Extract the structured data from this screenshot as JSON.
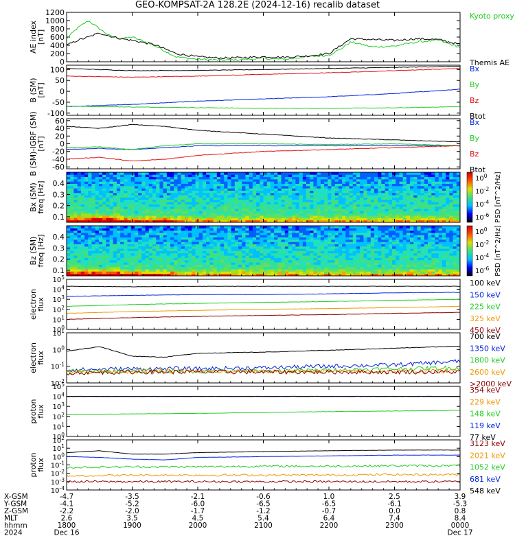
{
  "title": "GEO-KOMPSAT-2A 128.2E (2024-12-16) recalib dataset",
  "colors": {
    "black": "#000000",
    "green": "#22cc22",
    "red": "#dd1111",
    "blue": "#0022dd",
    "orange": "#ee9900",
    "darkred": "#880000"
  },
  "chart_data": [
    {
      "type": "line",
      "panel": "ae",
      "ylabel": "AE index [nT]",
      "ylim": [
        0,
        1200
      ],
      "yticks": [
        "0",
        "200",
        "400",
        "600",
        "800",
        "1000",
        "1200"
      ],
      "series": [
        {
          "name": "Kyoto proxy AE",
          "color": "#22cc22",
          "x": [
            1800,
            1810,
            1820,
            1830,
            1840,
            1850,
            1900,
            1920,
            1940,
            2000,
            2020,
            2040,
            2100,
            2120,
            2140,
            2200,
            2210,
            2220,
            2240,
            2300,
            2320,
            2340,
            2400
          ],
          "values": [
            560,
            820,
            1000,
            800,
            620,
            560,
            600,
            400,
            120,
            60,
            40,
            50,
            80,
            60,
            120,
            160,
            300,
            480,
            360,
            380,
            480,
            520,
            350
          ]
        },
        {
          "name": "Themis AE",
          "color": "#000000",
          "x": [
            1800,
            1810,
            1820,
            1830,
            1840,
            1850,
            1900,
            1920,
            1940,
            2000,
            2020,
            2040,
            2100,
            2120,
            2140,
            2200,
            2210,
            2220,
            2240,
            2300,
            2320,
            2340,
            2400
          ],
          "values": [
            400,
            520,
            600,
            700,
            620,
            560,
            520,
            420,
            200,
            120,
            90,
            100,
            120,
            110,
            140,
            200,
            380,
            560,
            540,
            520,
            560,
            540,
            420
          ]
        }
      ]
    },
    {
      "type": "line",
      "panel": "b_sm",
      "ylabel": "B (SM) [nT]",
      "ylim": [
        -110,
        120
      ],
      "yticks": [
        "-100",
        "-50",
        "0",
        "50",
        "100"
      ],
      "series": [
        {
          "name": "Bx",
          "color": "#0022dd",
          "x": [
            1800,
            1900,
            2000,
            2100,
            2200,
            2300,
            2400
          ],
          "values": [
            -70,
            -60,
            -45,
            -35,
            -25,
            -10,
            10
          ]
        },
        {
          "name": "By",
          "color": "#22cc22",
          "x": [
            1800,
            1900,
            2000,
            2100,
            2200,
            2300,
            2400
          ],
          "values": [
            -68,
            -72,
            -75,
            -78,
            -78,
            -76,
            -70
          ]
        },
        {
          "name": "Bz",
          "color": "#dd1111",
          "x": [
            1800,
            1900,
            2000,
            2100,
            2200,
            2300,
            2400
          ],
          "values": [
            70,
            65,
            70,
            78,
            85,
            95,
            105
          ]
        },
        {
          "name": "Btot",
          "color": "#000000",
          "x": [
            1800,
            1900,
            2000,
            2100,
            2200,
            2300,
            2400
          ],
          "values": [
            105,
            95,
            96,
            100,
            105,
            110,
            115
          ]
        }
      ]
    },
    {
      "type": "line",
      "panel": "b_igrf",
      "ylabel": "B (SM)-IGRF (SM) [nT]",
      "ylim": [
        -65,
        65
      ],
      "yticks": [
        "-60",
        "-40",
        "-20",
        "0",
        "20",
        "40",
        "60"
      ],
      "series": [
        {
          "name": "Bx",
          "color": "#0022dd",
          "x": [
            1800,
            1830,
            1900,
            1930,
            2000,
            2100,
            2200,
            2300,
            2400
          ],
          "values": [
            -15,
            -12,
            -15,
            -10,
            -5,
            -5,
            -5,
            -5,
            -5
          ]
        },
        {
          "name": "By",
          "color": "#22cc22",
          "x": [
            1800,
            1830,
            1900,
            1930,
            2000,
            2100,
            2200,
            2300,
            2400
          ],
          "values": [
            -10,
            -8,
            -15,
            -5,
            0,
            0,
            -2,
            0,
            -5
          ]
        },
        {
          "name": "Bz",
          "color": "#dd1111",
          "x": [
            1800,
            1830,
            1900,
            1930,
            2000,
            2100,
            2200,
            2300,
            2400
          ],
          "values": [
            -40,
            -35,
            -45,
            -40,
            -30,
            -20,
            -15,
            -10,
            -5
          ]
        },
        {
          "name": "Btot",
          "color": "#000000",
          "x": [
            1800,
            1830,
            1900,
            1930,
            2000,
            2100,
            2200,
            2300,
            2400
          ],
          "values": [
            45,
            40,
            50,
            45,
            35,
            25,
            15,
            10,
            5
          ]
        }
      ]
    },
    {
      "type": "heatmap",
      "panel": "bx_spec",
      "ylabel": "Bx (SM) freq [Hz]",
      "ylim": [
        0.05,
        0.5
      ],
      "yticks": [
        "0.1",
        "0.2",
        "0.3",
        "0.4"
      ],
      "colorbar_label": "PSD [nT^2/Hz]",
      "colorbar_ticks": [
        "10^0",
        "10^-2",
        "10^-4",
        "10^-6"
      ]
    },
    {
      "type": "heatmap",
      "panel": "bz_spec",
      "ylabel": "Bz (SM) freq [Hz]",
      "ylim": [
        0.05,
        0.5
      ],
      "yticks": [
        "0.1",
        "0.2",
        "0.3",
        "0.4"
      ],
      "colorbar_label": "PSD [nT^2/Hz]",
      "colorbar_ticks": [
        "10^0",
        "10^-2",
        "10^-4",
        "10^-6"
      ]
    },
    {
      "type": "line",
      "panel": "electron_low",
      "ylabel": "electron flux",
      "log": true,
      "ylim_exp": [
        0,
        5
      ],
      "yticks": [
        "10^0",
        "10^1",
        "10^2",
        "10^3",
        "10^4",
        "10^5"
      ],
      "series": [
        {
          "name": "100 keV",
          "color": "#000000",
          "x": [
            1800,
            1900,
            2000,
            2100,
            2200,
            2300,
            2400
          ],
          "values": [
            20000,
            18000,
            20000,
            20000,
            20000,
            20000,
            20000
          ]
        },
        {
          "name": "150 keV",
          "color": "#0022dd",
          "x": [
            1800,
            1900,
            2000,
            2100,
            2200,
            2300,
            2400
          ],
          "values": [
            2000,
            2500,
            3000,
            3000,
            3500,
            4500,
            5000
          ]
        },
        {
          "name": "225 keV",
          "color": "#22cc22",
          "x": [
            1800,
            1900,
            2000,
            2100,
            2200,
            2300,
            2400
          ],
          "values": [
            200,
            300,
            400,
            500,
            600,
            800,
            1000
          ]
        },
        {
          "name": "325 keV",
          "color": "#ee9900",
          "x": [
            1800,
            1900,
            2000,
            2100,
            2200,
            2300,
            2400
          ],
          "values": [
            40,
            60,
            80,
            100,
            120,
            150,
            200
          ]
        },
        {
          "name": "450 keV",
          "color": "#880000",
          "x": [
            1800,
            1900,
            2000,
            2100,
            2200,
            2300,
            2400
          ],
          "values": [
            10,
            15,
            20,
            25,
            30,
            40,
            50
          ]
        }
      ]
    },
    {
      "type": "line",
      "panel": "electron_high",
      "ylabel": "electron flux",
      "log": true,
      "ylim_exp": [
        -2,
        1
      ],
      "yticks": [
        "10^-2",
        "10^-1",
        "10^0",
        "10^1"
      ],
      "series": [
        {
          "name": "700 keV",
          "color": "#000000",
          "x": [
            1800,
            1830,
            1900,
            1930,
            2000,
            2100,
            2200,
            2300,
            2400
          ],
          "values": [
            0.8,
            1.5,
            0.4,
            0.35,
            0.6,
            0.7,
            0.9,
            1.2,
            1.6
          ]
        },
        {
          "name": "1350 keV",
          "color": "#0022dd",
          "x": [
            1800,
            1900,
            2000,
            2100,
            2200,
            2300,
            2400
          ],
          "values": [
            0.06,
            0.07,
            0.07,
            0.08,
            0.1,
            0.12,
            0.2
          ]
        },
        {
          "name": "1800 keV",
          "color": "#22cc22",
          "x": [
            1800,
            1900,
            2000,
            2100,
            2200,
            2300,
            2400
          ],
          "values": [
            0.05,
            0.05,
            0.05,
            0.05,
            0.06,
            0.07,
            0.08
          ]
        },
        {
          "name": "2600 keV",
          "color": "#ee9900",
          "x": [
            1800,
            1900,
            2000,
            2100,
            2200,
            2300,
            2400
          ],
          "values": [
            0.045,
            0.05,
            0.05,
            0.05,
            0.05,
            0.05,
            0.05
          ]
        },
        {
          "name": ">2000 keV",
          "color": "#880000",
          "x": [
            1800,
            1900,
            2000,
            2100,
            2200,
            2300,
            2400
          ],
          "values": [
            0.04,
            0.045,
            0.045,
            0.045,
            0.045,
            0.045,
            0.045
          ]
        }
      ]
    },
    {
      "type": "line",
      "panel": "proton_low",
      "ylabel": "proton flux",
      "log": true,
      "ylim_exp": [
        0,
        5
      ],
      "yticks": [
        "10^0",
        "10^1",
        "10^2",
        "10^3",
        "10^4",
        "10^5"
      ],
      "series": [
        {
          "name": "354 keV",
          "color": "#880000",
          "x": [
            1800,
            1900,
            2000,
            2100,
            2200,
            2300,
            2400
          ],
          "values": [
            10000,
            10000,
            10000,
            10000,
            10000,
            10000,
            10000
          ]
        },
        {
          "name": "229 keV",
          "color": "#ee9900",
          "x": [
            1800,
            1900,
            2000,
            2100,
            2200,
            2300,
            2400
          ],
          "values": [
            10000,
            10000,
            10000,
            10000,
            10000,
            10000,
            10000
          ]
        },
        {
          "name": "148 keV",
          "color": "#22cc22",
          "x": [
            1800,
            1900,
            2000,
            2100,
            2200,
            2300,
            2400
          ],
          "values": [
            150,
            180,
            200,
            250,
            300,
            350,
            400
          ]
        },
        {
          "name": "119 keV",
          "color": "#0022dd",
          "x": [
            1800,
            1900,
            2000,
            2100,
            2200,
            2300,
            2400
          ],
          "values": [
            10000,
            10000,
            10000,
            10000,
            10000,
            10000,
            10000
          ]
        },
        {
          "name": "77 keV",
          "color": "#000000",
          "x": [
            1800,
            1900,
            2000,
            2100,
            2200,
            2300,
            2400
          ],
          "values": [
            10000,
            10000,
            10000,
            10000,
            10000,
            10000,
            10000
          ]
        }
      ]
    },
    {
      "type": "line",
      "panel": "proton_high",
      "ylabel": "proton flux",
      "log": true,
      "ylim_exp": [
        -4,
        2
      ],
      "yticks": [
        "10^-4",
        "10^-3",
        "10^-2",
        "10^-1",
        "10^0",
        "10^1",
        "10^2"
      ],
      "series": [
        {
          "name": "3123 keV",
          "color": "#880000",
          "x": [
            1800,
            1900,
            2000,
            2100,
            2200,
            2300,
            2400
          ],
          "values": [
            0.001,
            0.001,
            0.001,
            0.001,
            0.001,
            0.001,
            0.001
          ]
        },
        {
          "name": "2021 keV",
          "color": "#ee9900",
          "x": [
            1800,
            1900,
            2000,
            2100,
            2200,
            2300,
            2400
          ],
          "values": [
            0.005,
            0.006,
            0.006,
            0.006,
            0.006,
            0.007,
            0.007
          ]
        },
        {
          "name": "1052 keV",
          "color": "#22cc22",
          "x": [
            1800,
            1900,
            2000,
            2100,
            2200,
            2300,
            2400
          ],
          "values": [
            0.05,
            0.06,
            0.06,
            0.07,
            0.07,
            0.08,
            0.08
          ]
        },
        {
          "name": "681 keV",
          "color": "#0022dd",
          "x": [
            1800,
            1830,
            1900,
            1930,
            2000,
            2100,
            2200,
            2300,
            2400
          ],
          "values": [
            1,
            0.8,
            0.5,
            0.4,
            0.8,
            1,
            1.2,
            1.5,
            1.5
          ]
        },
        {
          "name": "548 keV",
          "color": "#000000",
          "x": [
            1800,
            1830,
            1900,
            1930,
            2000,
            2100,
            2200,
            2300,
            2400
          ],
          "values": [
            3,
            5,
            2,
            2,
            3,
            4,
            5,
            6,
            6
          ]
        }
      ]
    }
  ],
  "ephemeris": {
    "row_labels": [
      "X-GSM",
      "Y-GSM",
      "Z-GSM",
      "MLT",
      "hhmm",
      "2024"
    ],
    "columns": [
      {
        "values": [
          "-4.7",
          "-4.1",
          "-2.2",
          "2.6",
          "1800",
          "Dec 16"
        ]
      },
      {
        "values": [
          "-3.5",
          "-5.2",
          "-2.0",
          "3.5",
          "1900",
          ""
        ]
      },
      {
        "values": [
          "-2.1",
          "-6.0",
          "-1.7",
          "4.5",
          "2000",
          ""
        ]
      },
      {
        "values": [
          "-0.6",
          "-6.5",
          "-1.2",
          "5.4",
          "2100",
          ""
        ]
      },
      {
        "values": [
          "1.0",
          "-6.5",
          "-0.7",
          "6.4",
          "2200",
          ""
        ]
      },
      {
        "values": [
          "2.5",
          "-6.1",
          "0.0",
          "7.4",
          "2300",
          ""
        ]
      },
      {
        "values": [
          "3.9",
          "-5.3",
          "0.8",
          "8.4",
          "0000",
          "Dec 17"
        ]
      }
    ]
  }
}
